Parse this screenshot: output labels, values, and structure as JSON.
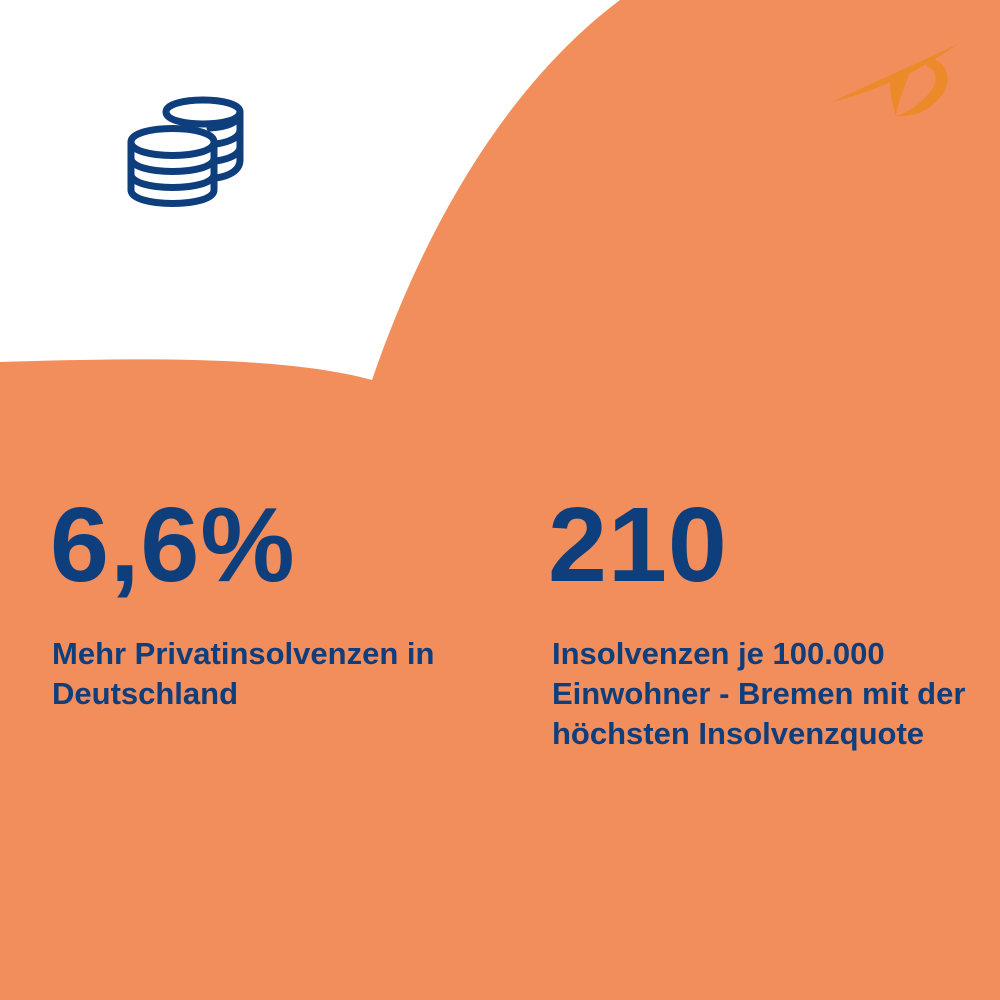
{
  "colors": {
    "background": "#ffffff",
    "accent_orange": "#f28d5c",
    "logo_orange": "#ec8a2a",
    "text_blue": "#0f3e7d"
  },
  "icons": {
    "top_left": "coins-icon",
    "top_right": "brand-logo-icon"
  },
  "stats": [
    {
      "number": "6,6%",
      "description": "Mehr Privatinsolvenzen in Deutschland"
    },
    {
      "number": "210",
      "description": "Insolvenzen je 100.000 Einwohner - Bremen mit der höchsten Insolvenzquote"
    }
  ]
}
